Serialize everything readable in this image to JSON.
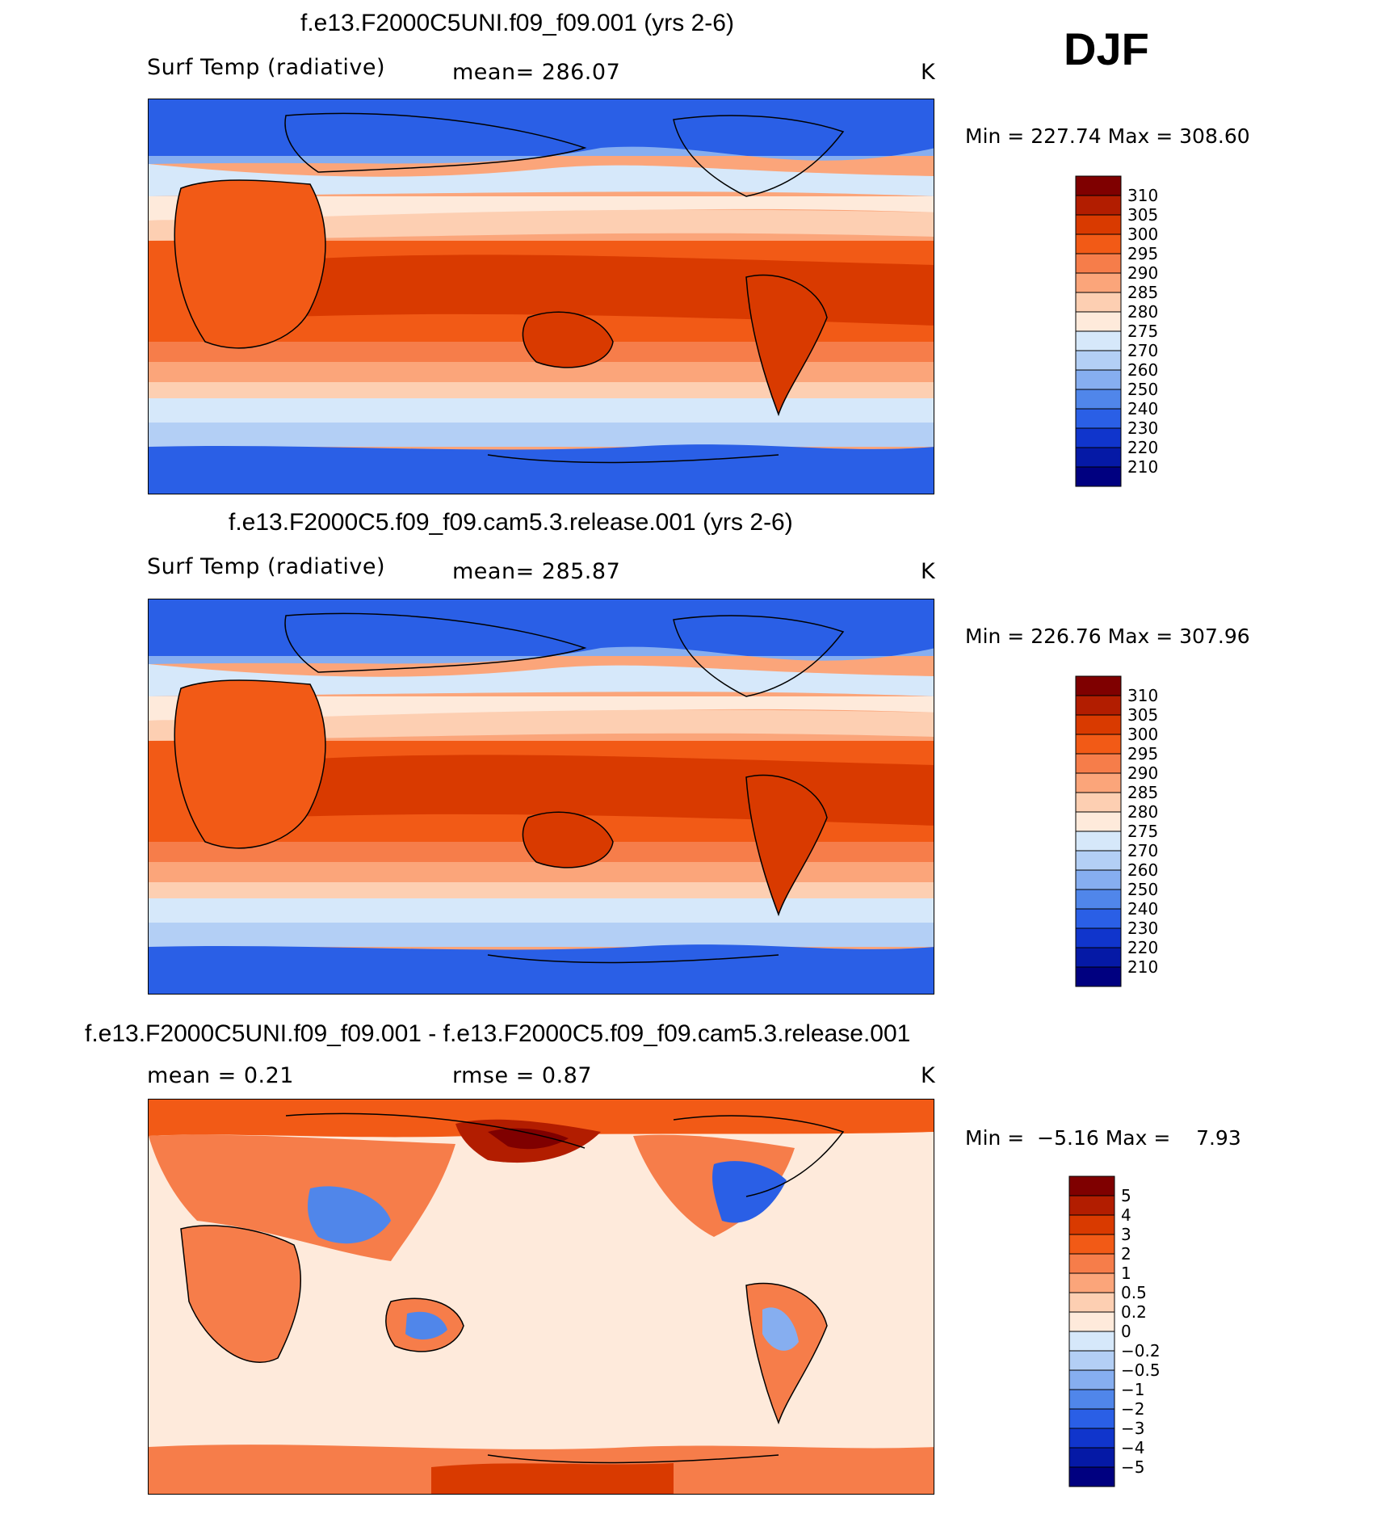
{
  "season": "DJF",
  "panels": [
    {
      "title": "f.e13.F2000C5UNI.f09_f09.001 (yrs 2-6)",
      "variable": "Surf Temp (radiative)",
      "mean_text": "mean= 286.07",
      "units": "K",
      "minmax": "Min = 227.74 Max = 308.60",
      "colorbar": {
        "labels": [
          "310",
          "305",
          "300",
          "295",
          "290",
          "285",
          "280",
          "275",
          "270",
          "260",
          "250",
          "240",
          "230",
          "220",
          "210"
        ],
        "colors": [
          "#7f0000",
          "#b21d00",
          "#d93a00",
          "#f25a16",
          "#f67d4a",
          "#fba57a",
          "#fdcfb2",
          "#feeadb",
          "#d6e8fa",
          "#b3cff5",
          "#86aef0",
          "#5086ea",
          "#2a5fe6",
          "#1035cc",
          "#0519a6",
          "#000080"
        ]
      }
    },
    {
      "title": "f.e13.F2000C5.f09_f09.cam5.3.release.001 (yrs 2-6)",
      "variable": "Surf Temp (radiative)",
      "mean_text": "mean= 285.87",
      "units": "K",
      "minmax": "Min = 226.76 Max = 307.96",
      "colorbar": {
        "labels": [
          "310",
          "305",
          "300",
          "295",
          "290",
          "285",
          "280",
          "275",
          "270",
          "260",
          "250",
          "240",
          "230",
          "220",
          "210"
        ],
        "colors": [
          "#7f0000",
          "#b21d00",
          "#d93a00",
          "#f25a16",
          "#f67d4a",
          "#fba57a",
          "#fdcfb2",
          "#feeadb",
          "#d6e8fa",
          "#b3cff5",
          "#86aef0",
          "#5086ea",
          "#2a5fe6",
          "#1035cc",
          "#0519a6",
          "#000080"
        ]
      }
    },
    {
      "title": "f.e13.F2000C5UNI.f09_f09.001 - f.e13.F2000C5.f09_f09.cam5.3.release.001",
      "mean_text": "mean =    0.21",
      "rmse_text": "rmse =    0.87",
      "units": "K",
      "minmax": "Min =  −5.16 Max =    7.93",
      "colorbar": {
        "labels": [
          "5",
          "4",
          "3",
          "2",
          "1",
          "0.5",
          "0.2",
          "0",
          "−0.2",
          "−0.5",
          "−1",
          "−2",
          "−3",
          "−4",
          "−5"
        ],
        "colors": [
          "#7f0000",
          "#b21d00",
          "#d93a00",
          "#f25a16",
          "#f67d4a",
          "#fba57a",
          "#fdcfb2",
          "#feeadb",
          "#d6e8fa",
          "#b3cff5",
          "#86aef0",
          "#5086ea",
          "#2a5fe6",
          "#1035cc",
          "#0519a6",
          "#000080"
        ]
      }
    }
  ],
  "chart_data": [
    {
      "type": "heatmap",
      "title": "f.e13.F2000C5UNI.f09_f09.001 (yrs 2-6)",
      "variable": "Surf Temp (radiative)",
      "units": "K",
      "mean": 286.07,
      "min": 227.74,
      "max": 308.6,
      "levels": [
        210,
        220,
        230,
        240,
        250,
        260,
        270,
        275,
        280,
        285,
        290,
        295,
        300,
        305,
        310
      ],
      "projection": "cylindrical equidistant, Pacific-centered"
    },
    {
      "type": "heatmap",
      "title": "f.e13.F2000C5.f09_f09.cam5.3.release.001 (yrs 2-6)",
      "variable": "Surf Temp (radiative)",
      "units": "K",
      "mean": 285.87,
      "min": 226.76,
      "max": 307.96,
      "levels": [
        210,
        220,
        230,
        240,
        250,
        260,
        270,
        275,
        280,
        285,
        290,
        295,
        300,
        305,
        310
      ],
      "projection": "cylindrical equidistant, Pacific-centered"
    },
    {
      "type": "heatmap",
      "title": "f.e13.F2000C5UNI.f09_f09.001 - f.e13.F2000C5.f09_f09.cam5.3.release.001",
      "units": "K",
      "mean": 0.21,
      "rmse": 0.87,
      "min": -5.16,
      "max": 7.93,
      "levels": [
        -5,
        -4,
        -3,
        -2,
        -1,
        -0.5,
        -0.2,
        0,
        0.2,
        0.5,
        1,
        2,
        3,
        4,
        5
      ]
    }
  ]
}
